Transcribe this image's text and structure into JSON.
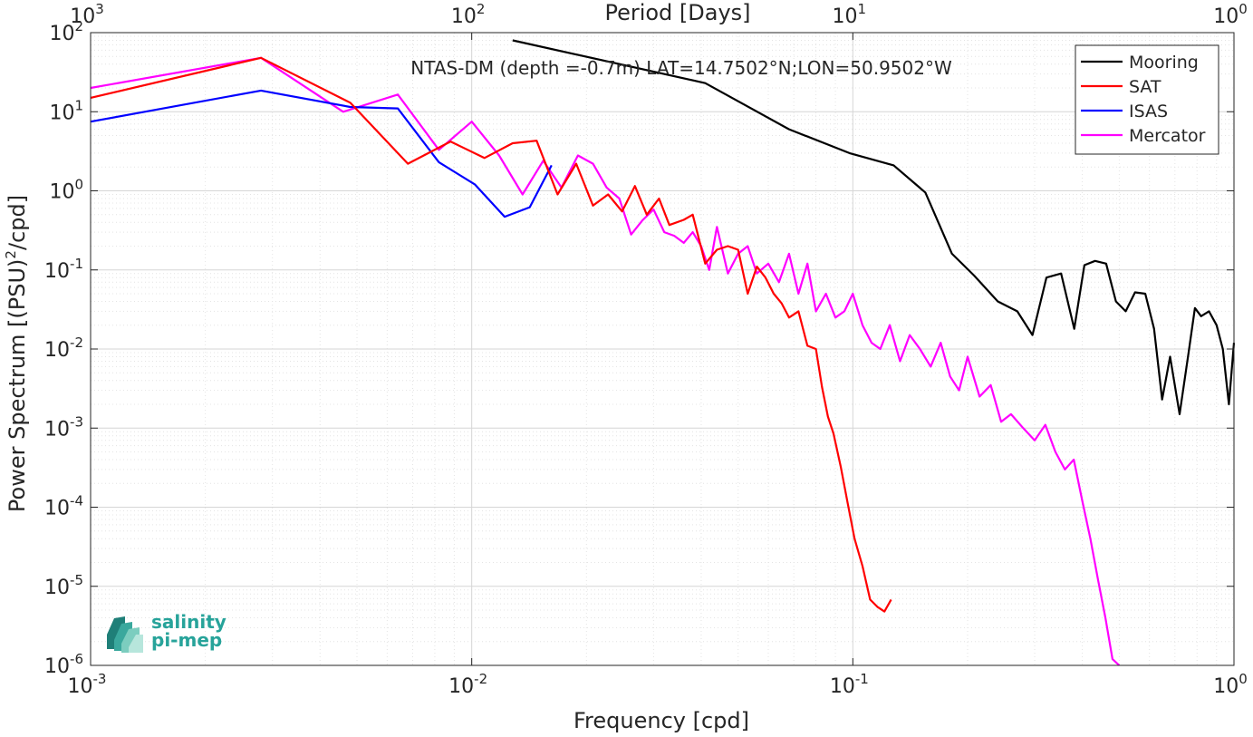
{
  "chart_data": {
    "type": "line",
    "title": "NTAS-DM (depth =-0.7m) LAT=14.7502°N;LON=50.9502°W",
    "xlabel": "Frequency [cpd]",
    "ylabel": "Power Spectrum [(PSU)",
    "ylabel_sup": "2",
    "ylabel_tail": "/cpd]",
    "top_xlabel": "Period [Days]",
    "xscale": "log",
    "yscale": "log",
    "xlim": [
      0.001,
      1
    ],
    "ylim": [
      1e-06,
      100
    ],
    "grid": true,
    "minor_grid": true,
    "legend_position": "top-right",
    "x_ticks": [
      {
        "value": 0.001,
        "base": "10",
        "exp": "-3"
      },
      {
        "value": 0.01,
        "base": "10",
        "exp": "-2"
      },
      {
        "value": 0.1,
        "base": "10",
        "exp": "-1"
      },
      {
        "value": 1,
        "base": "10",
        "exp": "0"
      }
    ],
    "top_ticks": [
      {
        "value": 0.001,
        "base": "10",
        "exp": "3"
      },
      {
        "value": 0.01,
        "base": "10",
        "exp": "2"
      },
      {
        "value": 0.1,
        "base": "10",
        "exp": "1"
      },
      {
        "value": 1,
        "base": "10",
        "exp": "0"
      }
    ],
    "y_ticks": [
      {
        "value": 100,
        "base": "10",
        "exp": "2"
      },
      {
        "value": 10,
        "base": "10",
        "exp": "1"
      },
      {
        "value": 1,
        "base": "10",
        "exp": "0"
      },
      {
        "value": 0.1,
        "base": "10",
        "exp": "-1"
      },
      {
        "value": 0.01,
        "base": "10",
        "exp": "-2"
      },
      {
        "value": 0.001,
        "base": "10",
        "exp": "-3"
      },
      {
        "value": 0.0001,
        "base": "10",
        "exp": "-4"
      },
      {
        "value": 1e-05,
        "base": "10",
        "exp": "-5"
      },
      {
        "value": 1e-06,
        "base": "10",
        "exp": "-6"
      }
    ],
    "series": [
      {
        "name": "Mooring",
        "color": "#000000",
        "x": [
          0.0128,
          0.041,
          0.068,
          0.098,
          0.128,
          0.155,
          0.182,
          0.208,
          0.24,
          0.27,
          0.296,
          0.322,
          0.352,
          0.381,
          0.405,
          0.432,
          0.462,
          0.49,
          0.52,
          0.55,
          0.585,
          0.617,
          0.648,
          0.68,
          0.72,
          0.76,
          0.79,
          0.82,
          0.86,
          0.9,
          0.935,
          0.97,
          1.0
        ],
        "y": [
          80,
          23,
          6.0,
          3.0,
          2.1,
          0.95,
          0.16,
          0.085,
          0.04,
          0.03,
          0.015,
          0.08,
          0.09,
          0.018,
          0.115,
          0.13,
          0.12,
          0.04,
          0.03,
          0.052,
          0.05,
          0.018,
          0.0023,
          0.008,
          0.0015,
          0.009,
          0.033,
          0.026,
          0.03,
          0.02,
          0.01,
          0.002,
          0.012
        ]
      },
      {
        "name": "SAT",
        "color": "#ff0000",
        "x": [
          0.001,
          0.0028,
          0.0048,
          0.0068,
          0.0088,
          0.0108,
          0.0128,
          0.0148,
          0.0168,
          0.0188,
          0.0208,
          0.0228,
          0.0248,
          0.0268,
          0.0288,
          0.031,
          0.033,
          0.036,
          0.038,
          0.041,
          0.044,
          0.047,
          0.05,
          0.053,
          0.056,
          0.059,
          0.062,
          0.065,
          0.068,
          0.072,
          0.076,
          0.08,
          0.083,
          0.086,
          0.089,
          0.093,
          0.097,
          0.101,
          0.106,
          0.111,
          0.116,
          0.121,
          0.126
        ],
        "y": [
          15,
          48,
          13,
          2.2,
          4.2,
          2.6,
          4.0,
          4.3,
          0.9,
          2.2,
          0.65,
          0.9,
          0.55,
          1.15,
          0.5,
          0.8,
          0.37,
          0.43,
          0.5,
          0.12,
          0.18,
          0.2,
          0.18,
          0.05,
          0.11,
          0.08,
          0.05,
          0.038,
          0.025,
          0.03,
          0.011,
          0.01,
          0.0033,
          0.0014,
          0.00085,
          0.00032,
          0.00011,
          4e-05,
          1.8e-05,
          6.8e-06,
          5.5e-06,
          4.8e-06,
          6.8e-06
        ]
      },
      {
        "name": "ISAS",
        "color": "#0000ff",
        "x": [
          0.001,
          0.0028,
          0.0048,
          0.0064,
          0.0082,
          0.0102,
          0.0122,
          0.0142,
          0.0162
        ],
        "y": [
          7.5,
          18.5,
          11.5,
          11.0,
          2.3,
          1.2,
          0.47,
          0.62,
          2.1
        ]
      },
      {
        "name": "Mercator",
        "color": "#ff00ff",
        "x": [
          0.001,
          0.0028,
          0.0046,
          0.0064,
          0.0082,
          0.01,
          0.0118,
          0.0136,
          0.0154,
          0.0172,
          0.019,
          0.0208,
          0.0226,
          0.0244,
          0.0262,
          0.028,
          0.03,
          0.032,
          0.034,
          0.036,
          0.038,
          0.04,
          0.042,
          0.044,
          0.047,
          0.05,
          0.053,
          0.056,
          0.06,
          0.064,
          0.068,
          0.072,
          0.076,
          0.08,
          0.085,
          0.09,
          0.095,
          0.1,
          0.106,
          0.112,
          0.118,
          0.125,
          0.133,
          0.141,
          0.15,
          0.16,
          0.17,
          0.18,
          0.19,
          0.2,
          0.215,
          0.23,
          0.245,
          0.26,
          0.28,
          0.3,
          0.32,
          0.34,
          0.36,
          0.38,
          0.4,
          0.42,
          0.44,
          0.46,
          0.48,
          0.5
        ],
        "y": [
          20,
          48,
          10,
          16.5,
          3.3,
          7.5,
          2.8,
          0.9,
          2.4,
          1.1,
          2.8,
          2.2,
          1.1,
          0.8,
          0.28,
          0.42,
          0.58,
          0.3,
          0.27,
          0.22,
          0.3,
          0.2,
          0.1,
          0.35,
          0.09,
          0.16,
          0.2,
          0.09,
          0.12,
          0.07,
          0.16,
          0.05,
          0.12,
          0.03,
          0.05,
          0.025,
          0.03,
          0.05,
          0.02,
          0.012,
          0.01,
          0.02,
          0.007,
          0.015,
          0.01,
          0.006,
          0.012,
          0.0045,
          0.003,
          0.008,
          0.0025,
          0.0035,
          0.0012,
          0.0015,
          0.001,
          0.0007,
          0.0011,
          0.0005,
          0.0003,
          0.0004,
          0.00012,
          4e-05,
          1.2e-05,
          4e-06,
          1.2e-06,
          1e-06
        ]
      }
    ]
  },
  "logo": {
    "line1": "salinity",
    "line2": "pi-mep"
  }
}
